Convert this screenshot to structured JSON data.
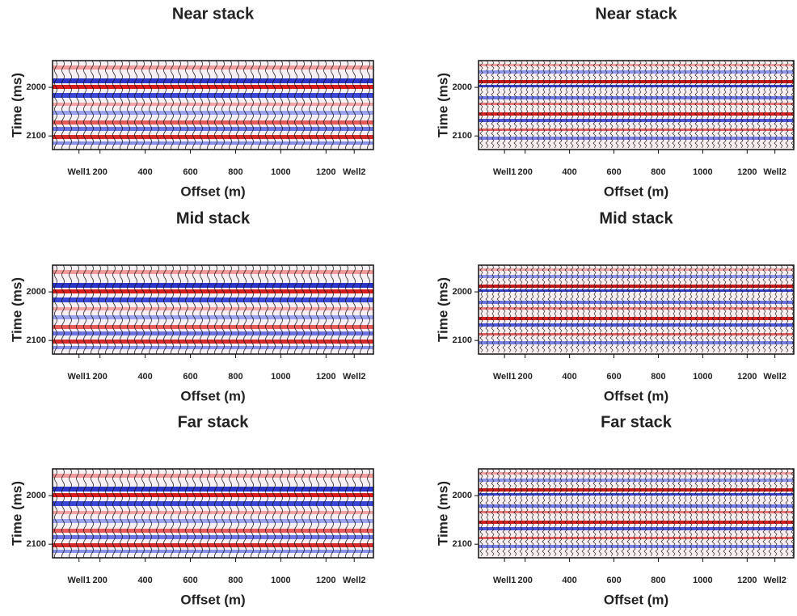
{
  "chart_data": [
    {
      "type": "seismic",
      "title": "Near stack",
      "xlabel": "Offset (m)",
      "ylabel": "Time (ms)",
      "xlim": [
        -10,
        1410
      ],
      "xticks": [
        {
          "value": 107,
          "label": "Well1"
        },
        200,
        400,
        600,
        800,
        1000,
        1200,
        {
          "value": 1325,
          "label": "Well2"
        }
      ],
      "ylim": [
        1945,
        2128
      ],
      "yticks": [
        2000,
        2100
      ],
      "y_inverted": true,
      "style": "smooth"
    },
    {
      "type": "seismic",
      "title": "Near stack",
      "xlabel": "Offset (m)",
      "ylabel": "Time (ms)",
      "xlim": [
        -10,
        1410
      ],
      "xticks": [
        {
          "value": 107,
          "label": "Well1"
        },
        200,
        400,
        600,
        800,
        1000,
        1200,
        {
          "value": 1325,
          "label": "Well2"
        }
      ],
      "ylim": [
        1945,
        2128
      ],
      "yticks": [
        2000,
        2100
      ],
      "y_inverted": true,
      "style": "noisy"
    },
    {
      "type": "seismic",
      "title": "Mid stack",
      "xlabel": "Offset (m)",
      "ylabel": "Time (ms)",
      "xlim": [
        -10,
        1410
      ],
      "xticks": [
        {
          "value": 107,
          "label": "Well1"
        },
        200,
        400,
        600,
        800,
        1000,
        1200,
        {
          "value": 1325,
          "label": "Well2"
        }
      ],
      "ylim": [
        1945,
        2128
      ],
      "yticks": [
        2000,
        2100
      ],
      "y_inverted": true,
      "style": "smooth"
    },
    {
      "type": "seismic",
      "title": "Mid stack",
      "xlabel": "Offset (m)",
      "ylabel": "Time (ms)",
      "xlim": [
        -10,
        1410
      ],
      "xticks": [
        {
          "value": 107,
          "label": "Well1"
        },
        200,
        400,
        600,
        800,
        1000,
        1200,
        {
          "value": 1325,
          "label": "Well2"
        }
      ],
      "ylim": [
        1945,
        2128
      ],
      "yticks": [
        2000,
        2100
      ],
      "y_inverted": true,
      "style": "noisy"
    },
    {
      "type": "seismic",
      "title": "Far stack",
      "xlabel": "Offset (m)",
      "ylabel": "Time (ms)",
      "xlim": [
        -10,
        1410
      ],
      "xticks": [
        {
          "value": 107,
          "label": "Well1"
        },
        200,
        400,
        600,
        800,
        1000,
        1200,
        {
          "value": 1325,
          "label": "Well2"
        }
      ],
      "ylim": [
        1945,
        2128
      ],
      "yticks": [
        2000,
        2100
      ],
      "y_inverted": true,
      "style": "smooth"
    },
    {
      "type": "seismic",
      "title": "Far stack",
      "xlabel": "Offset (m)",
      "ylabel": "Time (ms)",
      "xlim": [
        -10,
        1410
      ],
      "xticks": [
        {
          "value": 107,
          "label": "Well1"
        },
        200,
        400,
        600,
        800,
        1000,
        1200,
        {
          "value": 1325,
          "label": "Well2"
        }
      ],
      "ylim": [
        1945,
        2128
      ],
      "yticks": [
        2000,
        2100
      ],
      "y_inverted": true,
      "style": "noisy"
    }
  ]
}
